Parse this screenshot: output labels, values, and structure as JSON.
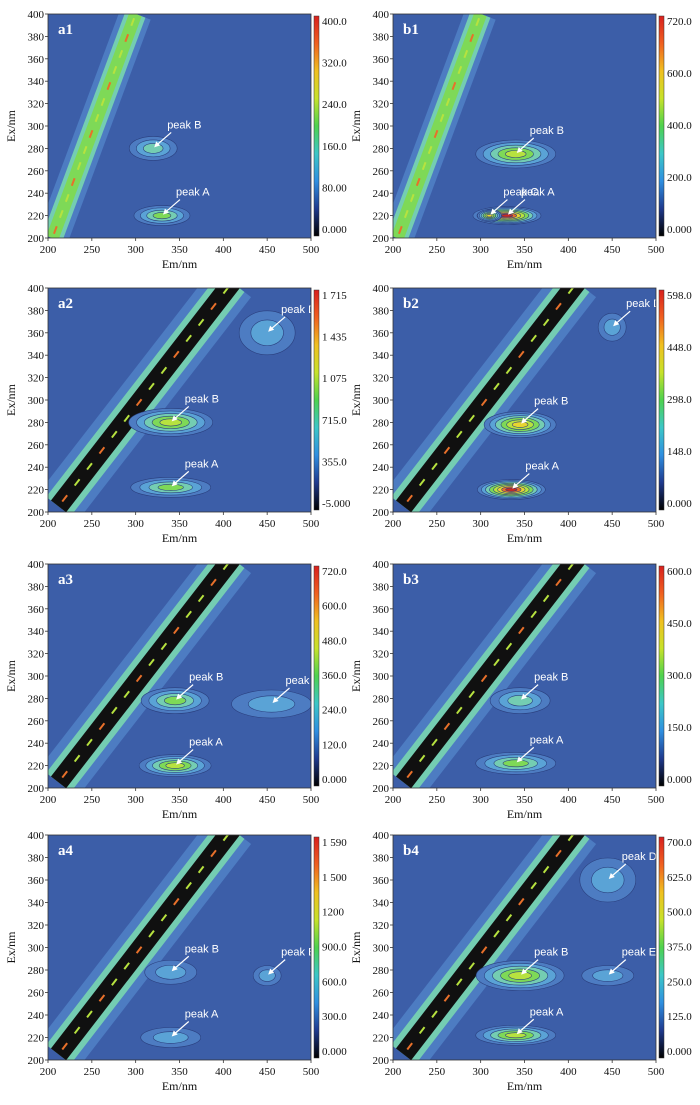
{
  "chart_data": [
    {
      "panel": "a1",
      "type": "contour",
      "xlabel": "Em/nm",
      "ylabel": "Ex/nm",
      "xticks": [
        "200",
        "250",
        "300",
        "350",
        "400",
        "450",
        "500"
      ],
      "yticks": [
        "200",
        "220",
        "240",
        "260",
        "280",
        "300",
        "320",
        "340",
        "360",
        "380",
        "400"
      ],
      "xlim": [
        200,
        500
      ],
      "ylim": [
        200,
        400
      ],
      "colorbar": [
        "400.0",
        "320.0",
        "240.0",
        "160.0",
        "80.00",
        "0.000"
      ],
      "scatter_band": "second",
      "peaks": [
        {
          "label": "peak A",
          "em": 330,
          "ex": 220,
          "intensity": 0.55,
          "sx": 28,
          "sy": 10
        },
        {
          "label": "peak B",
          "em": 320,
          "ex": 280,
          "intensity": 0.32,
          "sx": 24,
          "sy": 12
        }
      ]
    },
    {
      "panel": "b1",
      "type": "contour",
      "xlabel": "Em/nm",
      "ylabel": "Ex/nm",
      "xticks": [
        "200",
        "250",
        "300",
        "350",
        "400",
        "450",
        "500"
      ],
      "yticks": [
        "200",
        "220",
        "240",
        "260",
        "280",
        "300",
        "320",
        "340",
        "360",
        "380",
        "400"
      ],
      "xlim": [
        200,
        500
      ],
      "ylim": [
        200,
        400
      ],
      "colorbar": [
        "720.0",
        "600.0",
        "400.0",
        "200.0",
        "0.000"
      ],
      "scatter_band": "second",
      "peaks": [
        {
          "label": "peak A",
          "em": 330,
          "ex": 220,
          "intensity": 1.0,
          "sx": 34,
          "sy": 9
        },
        {
          "label": "peak B",
          "em": 340,
          "ex": 275,
          "intensity": 0.62,
          "sx": 40,
          "sy": 14
        },
        {
          "label": "peak C",
          "em": 310,
          "ex": 220,
          "intensity": 0.8,
          "sx": 12,
          "sy": 6
        }
      ]
    },
    {
      "panel": "a2",
      "type": "contour",
      "xlabel": "Em/nm",
      "ylabel": "Ex/nm",
      "xticks": [
        "200",
        "250",
        "300",
        "350",
        "400",
        "450",
        "500"
      ],
      "yticks": [
        "200",
        "220",
        "240",
        "260",
        "280",
        "300",
        "320",
        "340",
        "360",
        "380",
        "400"
      ],
      "xlim": [
        200,
        500
      ],
      "ylim": [
        200,
        400
      ],
      "colorbar": [
        "1 715",
        "1 435",
        "1 075",
        "715.0",
        "355.0",
        "-5.000"
      ],
      "scatter_band": "first",
      "peaks": [
        {
          "label": "peak A",
          "em": 340,
          "ex": 222,
          "intensity": 0.55,
          "sx": 40,
          "sy": 10
        },
        {
          "label": "peak B",
          "em": 340,
          "ex": 280,
          "intensity": 0.6,
          "sx": 42,
          "sy": 14
        },
        {
          "label": "peak D",
          "em": 450,
          "ex": 360,
          "intensity": 0.18,
          "sx": 28,
          "sy": 22
        }
      ]
    },
    {
      "panel": "b2",
      "type": "contour",
      "xlabel": "Em/nm",
      "ylabel": "Ex/nm",
      "xticks": [
        "200",
        "250",
        "300",
        "350",
        "400",
        "450",
        "500"
      ],
      "yticks": [
        "200",
        "220",
        "240",
        "260",
        "280",
        "300",
        "320",
        "340",
        "360",
        "380",
        "400"
      ],
      "xlim": [
        200,
        500
      ],
      "ylim": [
        200,
        400
      ],
      "colorbar": [
        "598.0",
        "448.0",
        "298.0",
        "148.0",
        "0.000"
      ],
      "scatter_band": "first",
      "peaks": [
        {
          "label": "peak A",
          "em": 335,
          "ex": 220,
          "intensity": 1.0,
          "sx": 34,
          "sy": 10
        },
        {
          "label": "peak B",
          "em": 345,
          "ex": 278,
          "intensity": 0.72,
          "sx": 36,
          "sy": 13
        },
        {
          "label": "peak D",
          "em": 450,
          "ex": 365,
          "intensity": 0.18,
          "sx": 14,
          "sy": 14
        }
      ]
    },
    {
      "panel": "a3",
      "type": "contour",
      "xlabel": "Em/nm",
      "ylabel": "Ex/nm",
      "xticks": [
        "200",
        "250",
        "300",
        "350",
        "400",
        "450",
        "500"
      ],
      "yticks": [
        "200",
        "220",
        "240",
        "260",
        "280",
        "300",
        "320",
        "340",
        "360",
        "380",
        "400"
      ],
      "xlim": [
        200,
        500
      ],
      "ylim": [
        200,
        400
      ],
      "colorbar": [
        "720.0",
        "600.0",
        "480.0",
        "360.0",
        "240.0",
        "120.0",
        "0.000"
      ],
      "scatter_band": "first",
      "peaks": [
        {
          "label": "peak A",
          "em": 345,
          "ex": 220,
          "intensity": 0.6,
          "sx": 36,
          "sy": 11
        },
        {
          "label": "peak B",
          "em": 345,
          "ex": 278,
          "intensity": 0.45,
          "sx": 34,
          "sy": 13
        },
        {
          "label": "peak E",
          "em": 455,
          "ex": 275,
          "intensity": 0.12,
          "sx": 40,
          "sy": 14
        }
      ]
    },
    {
      "panel": "b3",
      "type": "contour",
      "xlabel": "Em/nm",
      "ylabel": "Ex/nm",
      "xticks": [
        "200",
        "250",
        "300",
        "350",
        "400",
        "450",
        "500"
      ],
      "yticks": [
        "200",
        "220",
        "240",
        "260",
        "280",
        "300",
        "320",
        "340",
        "360",
        "380",
        "400"
      ],
      "xlim": [
        200,
        500
      ],
      "ylim": [
        200,
        400
      ],
      "colorbar": [
        "600.0",
        "450.0",
        "300.0",
        "150.0",
        "0.000"
      ],
      "scatter_band": "first",
      "peaks": [
        {
          "label": "peak A",
          "em": 340,
          "ex": 222,
          "intensity": 0.5,
          "sx": 40,
          "sy": 11
        },
        {
          "label": "peak B",
          "em": 345,
          "ex": 278,
          "intensity": 0.4,
          "sx": 30,
          "sy": 13
        }
      ]
    },
    {
      "panel": "a4",
      "type": "contour",
      "xlabel": "Em/nm",
      "ylabel": "Ex/nm",
      "xticks": [
        "200",
        "250",
        "300",
        "350",
        "400",
        "450",
        "500"
      ],
      "yticks": [
        "200",
        "220",
        "240",
        "260",
        "280",
        "300",
        "320",
        "340",
        "360",
        "380",
        "400"
      ],
      "xlim": [
        200,
        500
      ],
      "ylim": [
        200,
        400
      ],
      "colorbar": [
        "1 590",
        "1 500",
        "1200",
        "900.0",
        "600.0",
        "300.0",
        "0.000"
      ],
      "scatter_band": "first",
      "peaks": [
        {
          "label": "peak A",
          "em": 340,
          "ex": 220,
          "intensity": 0.3,
          "sx": 30,
          "sy": 10
        },
        {
          "label": "peak B",
          "em": 340,
          "ex": 278,
          "intensity": 0.22,
          "sx": 26,
          "sy": 12
        },
        {
          "label": "peak E",
          "em": 450,
          "ex": 275,
          "intensity": 0.1,
          "sx": 14,
          "sy": 10
        }
      ]
    },
    {
      "panel": "b4",
      "type": "contour",
      "xlabel": "Em/nm",
      "ylabel": "Ex/nm",
      "xticks": [
        "200",
        "250",
        "300",
        "350",
        "400",
        "450",
        "500"
      ],
      "yticks": [
        "200",
        "220",
        "240",
        "260",
        "280",
        "300",
        "320",
        "340",
        "360",
        "380",
        "400"
      ],
      "xlim": [
        200,
        500
      ],
      "ylim": [
        200,
        400
      ],
      "colorbar": [
        "700.0",
        "625.0",
        "500.0",
        "375.0",
        "250.0",
        "125.0",
        "0.000"
      ],
      "scatter_band": "first",
      "peaks": [
        {
          "label": "peak A",
          "em": 340,
          "ex": 222,
          "intensity": 0.6,
          "sx": 40,
          "sy": 10
        },
        {
          "label": "peak B",
          "em": 345,
          "ex": 275,
          "intensity": 0.62,
          "sx": 44,
          "sy": 15
        },
        {
          "label": "peak D",
          "em": 445,
          "ex": 360,
          "intensity": 0.15,
          "sx": 28,
          "sy": 22
        },
        {
          "label": "peak E",
          "em": 445,
          "ex": 275,
          "intensity": 0.25,
          "sx": 26,
          "sy": 10
        }
      ]
    }
  ],
  "colors": {
    "background": "#3c5ea8",
    "contour_levels": [
      "#4d7cc2",
      "#5aa3d6",
      "#74cdb2",
      "#7ed957",
      "#b7e23f",
      "#e7d530",
      "#e8702a",
      "#c92a22"
    ],
    "colorbar_stops": [
      "#000000",
      "#1f3a8e",
      "#2f8fe0",
      "#3cc7c7",
      "#4ed24e",
      "#c7e22a",
      "#f0c020",
      "#f06020",
      "#d8201e"
    ],
    "scatter_dark": "#101010",
    "contour_line": "#2a3f7e"
  }
}
